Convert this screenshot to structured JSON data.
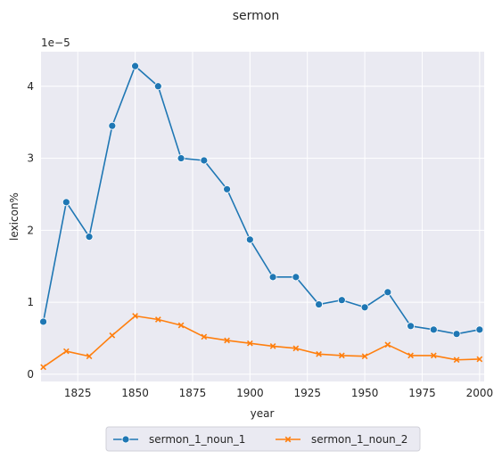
{
  "chart_data": {
    "type": "line",
    "title": "sermon",
    "xlabel": "year",
    "ylabel": "lexicon%",
    "y_scale_label": "1e−5",
    "xlim": [
      1809,
      2002
    ],
    "ylim": [
      -0.1,
      4.48
    ],
    "x_ticks": [
      1825,
      1850,
      1875,
      1900,
      1925,
      1950,
      1975,
      2000
    ],
    "y_ticks": [
      0,
      1,
      2,
      3,
      4
    ],
    "x_tick_labels": [
      "1825",
      "1850",
      "1875",
      "1900",
      "1925",
      "1950",
      "1975",
      "2000"
    ],
    "y_tick_labels": [
      "0",
      "1",
      "2",
      "3",
      "4"
    ],
    "grid": true,
    "legend_position": "bottom-center",
    "series": [
      {
        "name": "sermon_1_noun_1",
        "color": "#1f77b4",
        "marker": "circle",
        "x": [
          1810,
          1820,
          1830,
          1840,
          1850,
          1860,
          1870,
          1880,
          1890,
          1900,
          1910,
          1920,
          1930,
          1940,
          1950,
          1960,
          1970,
          1980,
          1990,
          2000
        ],
        "y": [
          0.73,
          2.39,
          1.91,
          3.45,
          4.28,
          4.0,
          3.0,
          2.97,
          2.57,
          1.87,
          1.35,
          1.35,
          0.97,
          1.03,
          0.93,
          1.14,
          0.67,
          0.62,
          0.56,
          0.62
        ]
      },
      {
        "name": "sermon_1_noun_2",
        "color": "#ff7f0e",
        "marker": "x",
        "x": [
          1810,
          1820,
          1830,
          1840,
          1850,
          1860,
          1870,
          1880,
          1890,
          1900,
          1910,
          1920,
          1930,
          1940,
          1950,
          1960,
          1970,
          1980,
          1990,
          2000
        ],
        "y": [
          0.1,
          0.32,
          0.25,
          0.54,
          0.81,
          0.76,
          0.68,
          0.52,
          0.47,
          0.43,
          0.39,
          0.36,
          0.28,
          0.26,
          0.25,
          0.41,
          0.26,
          0.26,
          0.2,
          0.21
        ]
      }
    ]
  }
}
